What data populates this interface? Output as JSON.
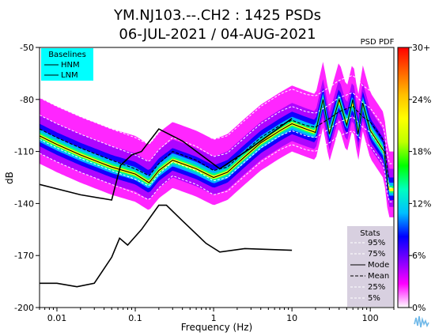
{
  "chart_data": {
    "type": "heatmap",
    "title": "YM.NJ103.--.CH2 : 1425 PSDs",
    "subtitle": "06-JUL-2021 / 04-AUG-2021",
    "xlabel": "Frequency (Hz)",
    "ylabel": "dB",
    "x_scale": "log",
    "xlim": [
      0.006,
      200
    ],
    "ylim": [
      -200,
      -50
    ],
    "x_ticks": [
      {
        "value": 0.01,
        "label": "0.01"
      },
      {
        "value": 0.1,
        "label": "0.1"
      },
      {
        "value": 1,
        "label": "1"
      },
      {
        "value": 10,
        "label": "10"
      },
      {
        "value": 100,
        "label": "100"
      }
    ],
    "y_ticks": [
      -50,
      -80,
      -110,
      -140,
      -170,
      -200
    ],
    "colorbar": {
      "label": "PSD PDF",
      "ticks": [
        "0%",
        "6%",
        "12%",
        "18%",
        "24%",
        "30+"
      ],
      "range": [
        0,
        30
      ],
      "colors": [
        "#ffffff",
        "#ff00ff",
        "#7f00ff",
        "#0000ff",
        "#00bfff",
        "#00ffbf",
        "#00ff00",
        "#bfff00",
        "#ffff00",
        "#ffbf00",
        "#ff6000",
        "#ff0000"
      ]
    },
    "baselines_legend": {
      "title": "Baselines",
      "items": [
        "HNM",
        "LNM"
      ],
      "background": "#00ffff"
    },
    "stats_legend": {
      "title": "Stats",
      "items": [
        "95%",
        "75%",
        "Mode",
        "Mean",
        "25%",
        "5%"
      ],
      "background": "#d8d0e0"
    },
    "series": [
      {
        "name": "HNM",
        "x": [
          0.006,
          0.02,
          0.05,
          0.065,
          0.09,
          0.12,
          0.2,
          0.4,
          1.2,
          3,
          10
        ],
        "y": [
          -129,
          -135,
          -138,
          -118,
          -112,
          -110,
          -97,
          -104,
          -120,
          -108,
          -91
        ]
      },
      {
        "name": "LNM",
        "x": [
          0.006,
          0.01,
          0.018,
          0.03,
          0.05,
          0.063,
          0.08,
          0.12,
          0.2,
          0.25,
          0.4,
          0.8,
          1.2,
          2.5,
          10
        ],
        "y": [
          -186,
          -186,
          -188,
          -186,
          -171,
          -160,
          -164,
          -155,
          -141,
          -141,
          -150,
          -163,
          -168,
          -166,
          -167
        ]
      },
      {
        "name": "Mode",
        "x": [
          0.006,
          0.01,
          0.02,
          0.05,
          0.1,
          0.15,
          0.2,
          0.3,
          0.6,
          1,
          1.5,
          2.5,
          4,
          7,
          10,
          15,
          20,
          25,
          30,
          40,
          50,
          60,
          70,
          80,
          100,
          150,
          170
        ],
        "y": [
          -101,
          -106,
          -112,
          -119,
          -123,
          -128,
          -121,
          -115,
          -120,
          -125,
          -122,
          -113,
          -105,
          -98,
          -94,
          -97,
          -99,
          -80,
          -100,
          -80,
          -95,
          -80,
          -100,
          -82,
          -98,
          -110,
          -132
        ]
      },
      {
        "name": "Mean",
        "x": [
          0.006,
          0.01,
          0.02,
          0.05,
          0.1,
          0.15,
          0.2,
          0.3,
          0.6,
          1,
          1.5,
          2.5,
          4,
          7,
          10,
          15,
          20,
          30,
          40,
          60,
          80,
          100,
          150,
          170
        ],
        "y": [
          -97,
          -102,
          -108,
          -115,
          -120,
          -124,
          -117,
          -110,
          -115,
          -121,
          -119,
          -110,
          -102,
          -95,
          -92,
          -95,
          -96,
          -91,
          -87,
          -84,
          -90,
          -93,
          -104,
          -125
        ]
      }
    ]
  }
}
